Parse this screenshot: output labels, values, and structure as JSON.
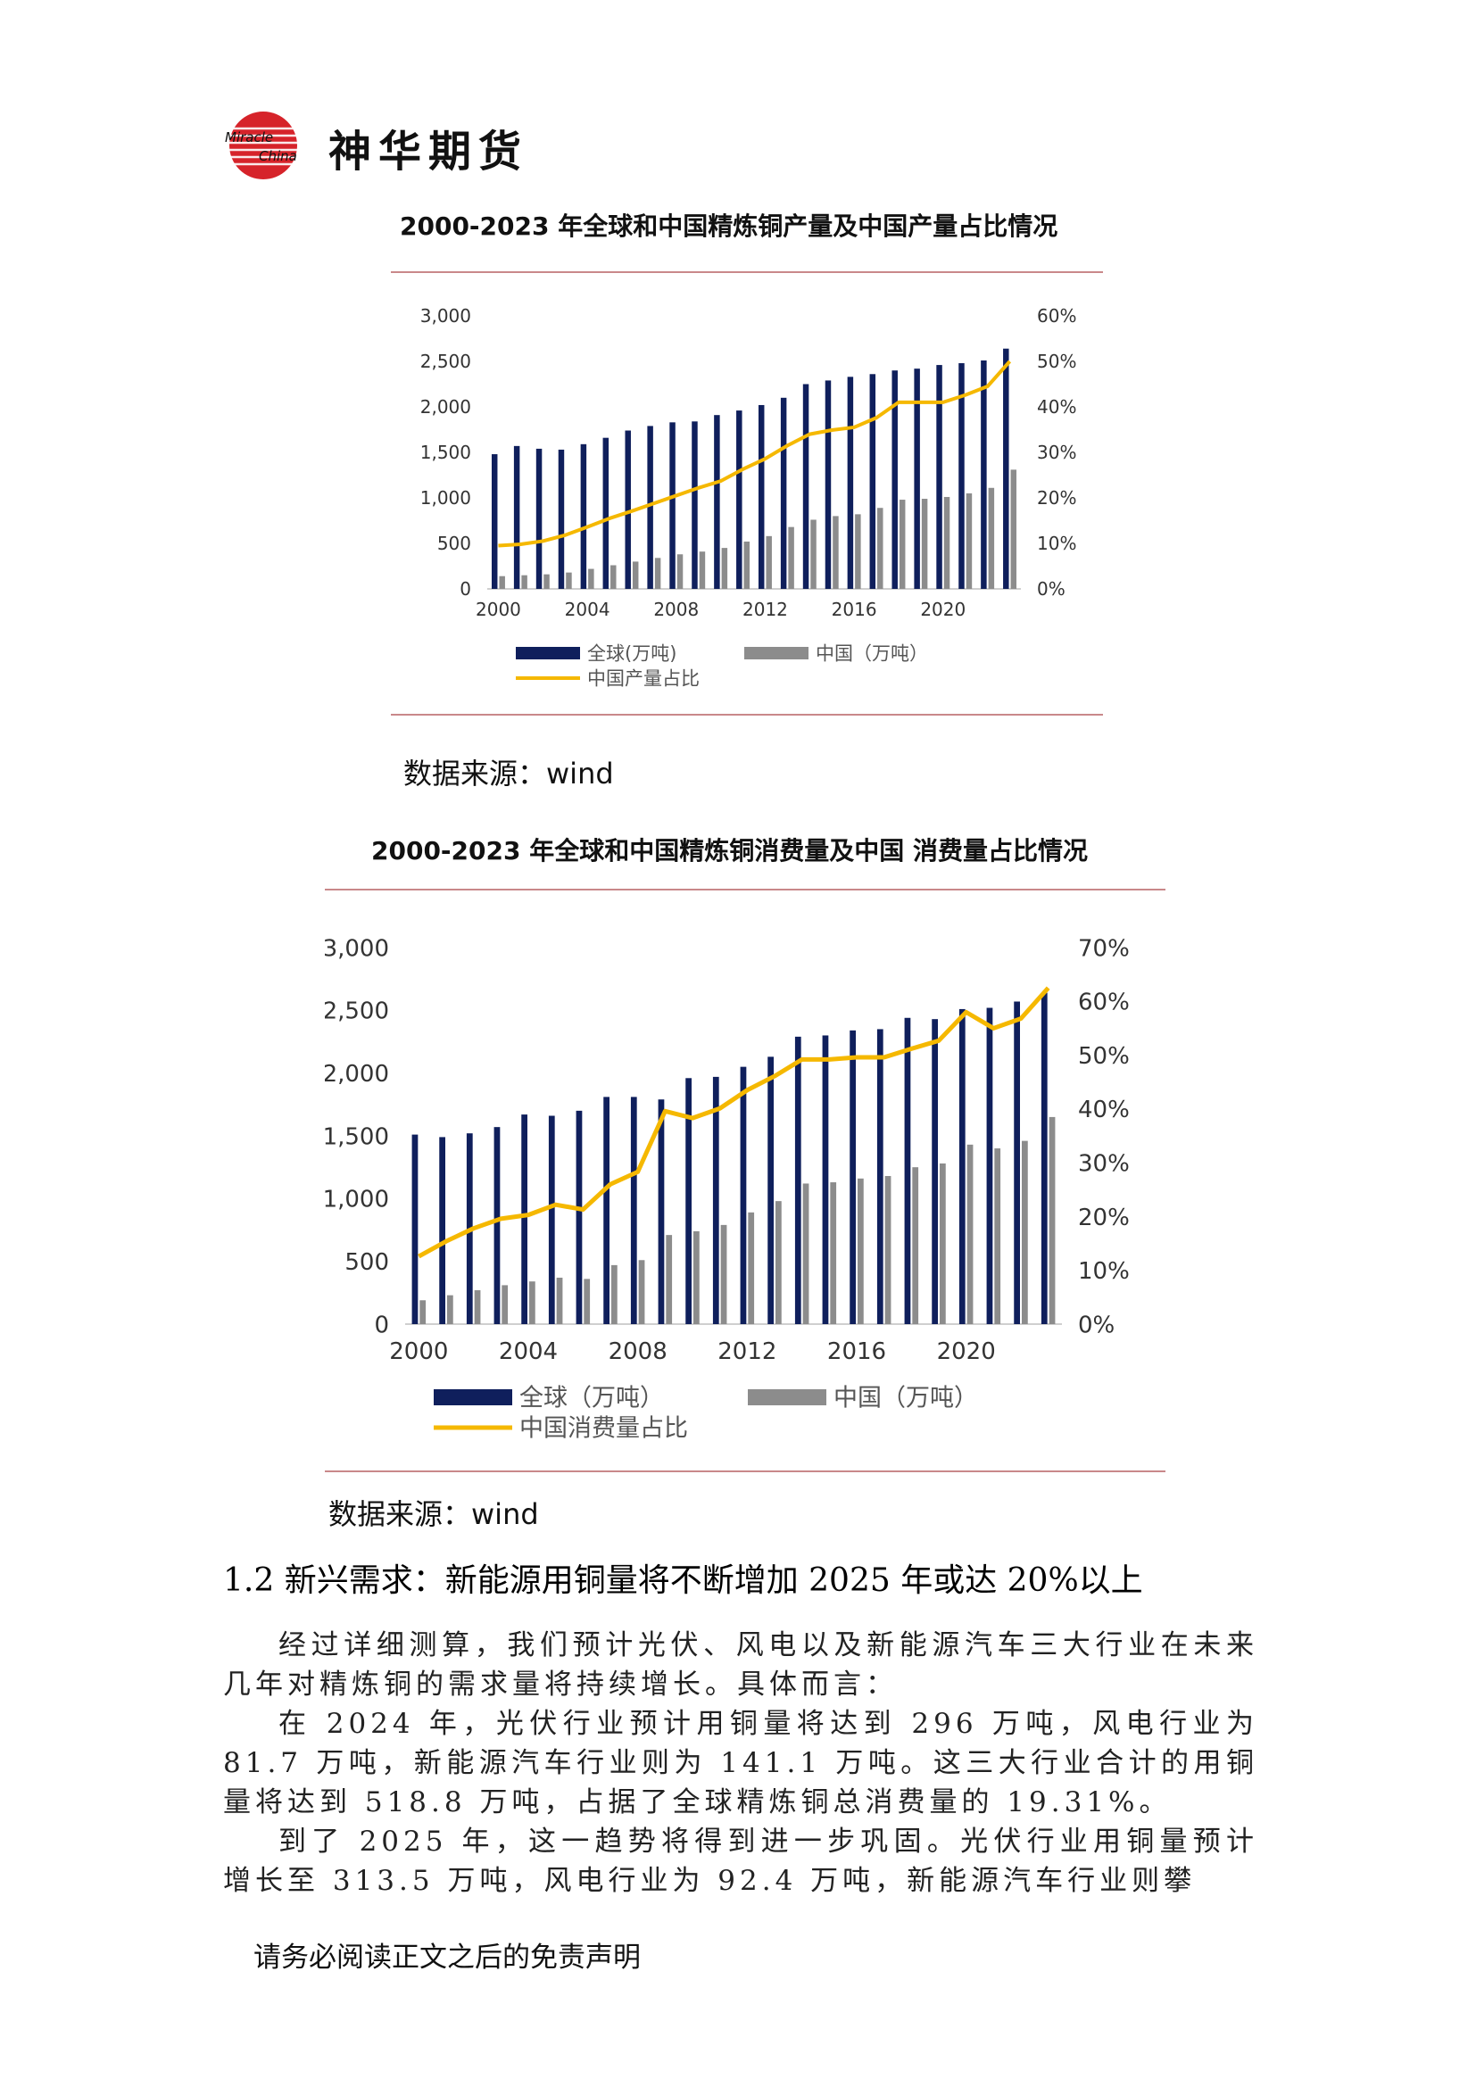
{
  "header": {
    "logo_text": "神华期货",
    "logo_mark_text_1": "Miracle",
    "logo_mark_text_2": "China"
  },
  "charts": [
    {
      "title": "2000-2023 年全球和中国精炼铜产量及中国产量占比情况",
      "source": "数据来源：wind",
      "chart_data": {
        "type": "bar",
        "years": [
          2000,
          2001,
          2002,
          2003,
          2004,
          2005,
          2006,
          2007,
          2008,
          2009,
          2010,
          2011,
          2012,
          2013,
          2014,
          2015,
          2016,
          2017,
          2018,
          2019,
          2020,
          2021,
          2022,
          2023
        ],
        "x_tick_labels": [
          "2000",
          "2004",
          "2008",
          "2012",
          "2016",
          "2020"
        ],
        "series": [
          {
            "name": "全球(万吨)",
            "type": "bar",
            "axis": "left",
            "color": "#0f1f5c",
            "values": [
              1480,
              1570,
              1540,
              1530,
              1590,
              1660,
              1740,
              1790,
              1830,
              1840,
              1910,
              1960,
              2020,
              2100,
              2250,
              2290,
              2330,
              2360,
              2400,
              2420,
              2460,
              2480,
              2510,
              2640
            ]
          },
          {
            "name": "中国（万吨）",
            "type": "bar",
            "axis": "left",
            "color": "#8c8c8c",
            "values": [
              140,
              150,
              160,
              180,
              220,
              260,
              300,
              340,
              380,
              410,
              450,
              520,
              580,
              680,
              760,
              800,
              820,
              890,
              980,
              990,
              1010,
              1050,
              1110,
              1310
            ]
          },
          {
            "name": "中国产量占比",
            "type": "line",
            "axis": "right",
            "color": "#f5b800",
            "values": [
              9.5,
              9.8,
              10.5,
              11.8,
              13.6,
              15.5,
              17.1,
              18.8,
              20.5,
              22.2,
              23.7,
              26.3,
              28.6,
              31.5,
              34,
              34.9,
              35.5,
              37.6,
              41.0,
              41.0,
              41.0,
              42.6,
              44.5,
              50.0
            ]
          }
        ],
        "left_axis": {
          "ylim": [
            0,
            3000
          ],
          "ticks": [
            "3,000",
            "2,500",
            "2,000",
            "1,500",
            "1,000",
            "500",
            "0"
          ]
        },
        "right_axis": {
          "ylim": [
            0,
            60
          ],
          "ticks": [
            "60%",
            "50%",
            "40%",
            "30%",
            "20%",
            "10%",
            "0%"
          ]
        }
      }
    },
    {
      "title": "2000-2023  年全球和中国精炼铜消费量及中国  消费量占比情况",
      "source": "数据来源：wind",
      "chart_data": {
        "type": "bar",
        "years": [
          2000,
          2001,
          2002,
          2003,
          2004,
          2005,
          2006,
          2007,
          2008,
          2009,
          2010,
          2011,
          2012,
          2013,
          2014,
          2015,
          2016,
          2017,
          2018,
          2019,
          2020,
          2021,
          2022,
          2023
        ],
        "x_tick_labels": [
          "2000",
          "2004",
          "2008",
          "2012",
          "2016",
          "2020"
        ],
        "series": [
          {
            "name": "全球（万吨）",
            "type": "bar",
            "axis": "left",
            "color": "#0f1f5c",
            "values": [
              1510,
              1490,
              1520,
              1570,
              1670,
              1660,
              1700,
              1810,
              1810,
              1790,
              1960,
              1970,
              2050,
              2130,
              2290,
              2300,
              2340,
              2350,
              2440,
              2430,
              2510,
              2520,
              2570,
              2640
            ]
          },
          {
            "name": "中国（万吨）",
            "type": "bar",
            "axis": "left",
            "color": "#8c8c8c",
            "values": [
              190,
              230,
              270,
              310,
              340,
              370,
              360,
              470,
              510,
              710,
              740,
              790,
              890,
              980,
              1120,
              1130,
              1160,
              1180,
              1250,
              1280,
              1430,
              1400,
              1460,
              1650
            ]
          },
          {
            "name": "中国消费量占比",
            "type": "line",
            "axis": "right",
            "color": "#f5b800",
            "values": [
              12.6,
              15.4,
              17.8,
              19.6,
              20.3,
              22.2,
              21.3,
              26,
              28.3,
              39.6,
              38.3,
              40.1,
              43.5,
              46.1,
              49.2,
              49.2,
              49.6,
              49.6,
              51.2,
              52.7,
              58,
              55,
              56.8,
              62.5
            ]
          }
        ],
        "left_axis": {
          "ylim": [
            0,
            3000
          ],
          "ticks": [
            "3,000",
            "2,500",
            "2,000",
            "1,500",
            "1,000",
            "500",
            "0"
          ]
        },
        "right_axis": {
          "ylim": [
            0,
            70
          ],
          "ticks": [
            "70%",
            "60%",
            "50%",
            "40%",
            "30%",
            "20%",
            "10%",
            "0%"
          ]
        }
      }
    }
  ],
  "section": {
    "heading": "1.2 新兴需求：新能源用铜量将不断增加 2025 年或达 20%以上",
    "paragraphs": [
      "经过详细测算，我们预计光伏、风电以及新能源汽车三大行业在未来几年对精炼铜的需求量将持续增长。具体而言：",
      "在 2024 年，光伏行业预计用铜量将达到 296 万吨，风电行业为 81.7 万吨，新能源汽车行业则为 141.1 万吨。这三大行业合计的用铜量将达到 518.8 万吨，占据了全球精炼铜总消费量的 19.31%。",
      "到了 2025 年，这一趋势将得到进一步巩固。光伏行业用铜量预计增长至 313.5 万吨，风电行业为 92.4 万吨，新能源汽车行业则攀"
    ]
  },
  "footer": {
    "text": "请务必阅读正文之后的免责声明"
  }
}
